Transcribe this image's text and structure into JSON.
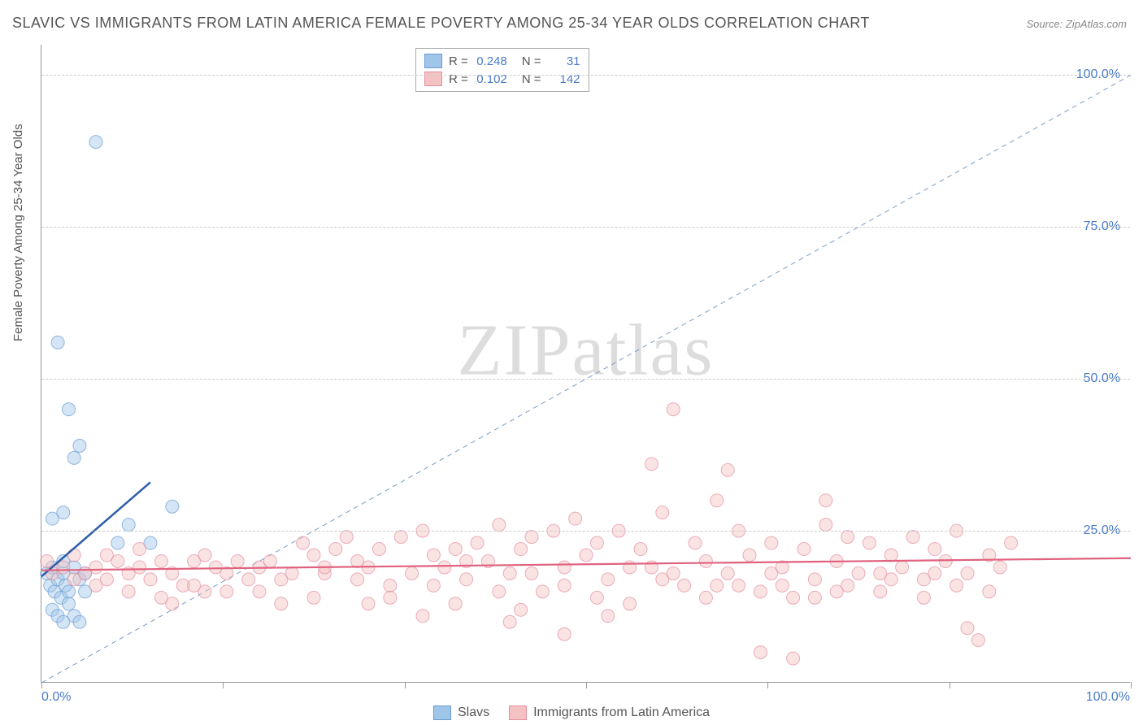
{
  "title": "SLAVIC VS IMMIGRANTS FROM LATIN AMERICA FEMALE POVERTY AMONG 25-34 YEAR OLDS CORRELATION CHART",
  "source": "Source: ZipAtlas.com",
  "watermark": "ZIPatlas",
  "chart": {
    "type": "scatter",
    "background_color": "#ffffff",
    "grid_color": "#cccccc",
    "axis_color": "#999999",
    "xlim": [
      0,
      100
    ],
    "ylim": [
      0,
      105
    ],
    "x_ticks": [
      0,
      16.67,
      33.33,
      50,
      66.67,
      83.33,
      100
    ],
    "x_tick_labels_shown": {
      "0": "0.0%",
      "100": "100.0%"
    },
    "y_grid_lines": [
      25,
      50,
      75,
      100
    ],
    "y_tick_labels": {
      "25": "25.0%",
      "50": "50.0%",
      "75": "75.0%",
      "100": "100.0%"
    },
    "ylabel": "Female Poverty Among 25-34 Year Olds",
    "label_fontsize": 15,
    "tick_label_color": "#4a7bc8",
    "tick_label_fontsize": 16,
    "marker_radius": 8,
    "marker_opacity": 0.45,
    "diagonal_line": {
      "color": "#7a9cc6",
      "dash": "6 5",
      "from": [
        0,
        0
      ],
      "to": [
        100,
        100
      ]
    },
    "series": [
      {
        "name": "Slavs",
        "color": "#9fc5e8",
        "stroke": "#6b9bd1",
        "R": "0.248",
        "N": "31",
        "trend": {
          "from": [
            0,
            17.5
          ],
          "to": [
            10,
            33
          ],
          "color": "#2e5da8",
          "width": 2.5
        },
        "points": [
          [
            0.5,
            18
          ],
          [
            0.8,
            16
          ],
          [
            1,
            19
          ],
          [
            1.2,
            15
          ],
          [
            1.5,
            17
          ],
          [
            1.8,
            14
          ],
          [
            2,
            18
          ],
          [
            2.2,
            16
          ],
          [
            2.5,
            15
          ],
          [
            2,
            20
          ],
          [
            3,
            19
          ],
          [
            3.5,
            17
          ],
          [
            4,
            15
          ],
          [
            1,
            12
          ],
          [
            1.5,
            11
          ],
          [
            2,
            10
          ],
          [
            2.5,
            13
          ],
          [
            3,
            11
          ],
          [
            3.5,
            10
          ],
          [
            1,
            27
          ],
          [
            2,
            28
          ],
          [
            3,
            37
          ],
          [
            3.5,
            39
          ],
          [
            2.5,
            45
          ],
          [
            8,
            26
          ],
          [
            12,
            29
          ],
          [
            7,
            23
          ],
          [
            10,
            23
          ],
          [
            1.5,
            56
          ],
          [
            5,
            89
          ],
          [
            4,
            18
          ]
        ]
      },
      {
        "name": "Immigrants from Latin America",
        "color": "#f4c2c2",
        "stroke": "#e38fa0",
        "R": "0.102",
        "N": "142",
        "trend": {
          "from": [
            0,
            18.5
          ],
          "to": [
            100,
            20.5
          ],
          "color": "#e0627f",
          "width": 2.2
        },
        "points": [
          [
            0.5,
            20
          ],
          [
            1,
            18
          ],
          [
            2,
            19
          ],
          [
            3,
            21
          ],
          [
            4,
            18
          ],
          [
            5,
            19
          ],
          [
            6,
            17
          ],
          [
            7,
            20
          ],
          [
            8,
            18
          ],
          [
            9,
            19
          ],
          [
            10,
            17
          ],
          [
            11,
            20
          ],
          [
            12,
            18
          ],
          [
            13,
            16
          ],
          [
            14,
            20
          ],
          [
            15,
            21
          ],
          [
            16,
            19
          ],
          [
            17,
            18
          ],
          [
            18,
            20
          ],
          [
            19,
            17
          ],
          [
            20,
            19
          ],
          [
            21,
            20
          ],
          [
            22,
            17
          ],
          [
            23,
            18
          ],
          [
            24,
            23
          ],
          [
            25,
            21
          ],
          [
            26,
            18
          ],
          [
            27,
            22
          ],
          [
            28,
            24
          ],
          [
            29,
            20
          ],
          [
            30,
            19
          ],
          [
            31,
            22
          ],
          [
            32,
            16
          ],
          [
            33,
            24
          ],
          [
            34,
            18
          ],
          [
            35,
            25
          ],
          [
            36,
            21
          ],
          [
            37,
            19
          ],
          [
            38,
            22
          ],
          [
            39,
            17
          ],
          [
            40,
            23
          ],
          [
            41,
            20
          ],
          [
            42,
            26
          ],
          [
            43,
            18
          ],
          [
            44,
            22
          ],
          [
            45,
            24
          ],
          [
            46,
            15
          ],
          [
            47,
            25
          ],
          [
            48,
            19
          ],
          [
            49,
            27
          ],
          [
            50,
            21
          ],
          [
            51,
            23
          ],
          [
            52,
            17
          ],
          [
            53,
            25
          ],
          [
            54,
            13
          ],
          [
            55,
            22
          ],
          [
            56,
            19
          ],
          [
            57,
            28
          ],
          [
            58,
            45
          ],
          [
            59,
            16
          ],
          [
            60,
            23
          ],
          [
            61,
            20
          ],
          [
            62,
            30
          ],
          [
            63,
            18
          ],
          [
            64,
            25
          ],
          [
            65,
            21
          ],
          [
            66,
            15
          ],
          [
            67,
            23
          ],
          [
            68,
            19
          ],
          [
            69,
            14
          ],
          [
            70,
            22
          ],
          [
            71,
            17
          ],
          [
            72,
            26
          ],
          [
            73,
            20
          ],
          [
            74,
            24
          ],
          [
            75,
            18
          ],
          [
            76,
            23
          ],
          [
            77,
            15
          ],
          [
            78,
            21
          ],
          [
            79,
            19
          ],
          [
            80,
            24
          ],
          [
            81,
            17
          ],
          [
            82,
            22
          ],
          [
            83,
            20
          ],
          [
            84,
            25
          ],
          [
            85,
            18
          ],
          [
            86,
            7
          ],
          [
            87,
            21
          ],
          [
            88,
            19
          ],
          [
            89,
            23
          ],
          [
            35,
            11
          ],
          [
            43,
            10
          ],
          [
            48,
            8
          ],
          [
            66,
            5
          ],
          [
            69,
            4
          ],
          [
            85,
            9
          ],
          [
            56,
            36
          ],
          [
            63,
            35
          ],
          [
            72,
            30
          ],
          [
            20,
            15
          ],
          [
            25,
            14
          ],
          [
            30,
            13
          ],
          [
            15,
            15
          ],
          [
            12,
            13
          ],
          [
            8,
            15
          ],
          [
            5,
            16
          ],
          [
            3,
            17
          ],
          [
            6,
            21
          ],
          [
            9,
            22
          ],
          [
            11,
            14
          ],
          [
            14,
            16
          ],
          [
            17,
            15
          ],
          [
            22,
            13
          ],
          [
            26,
            19
          ],
          [
            29,
            17
          ],
          [
            32,
            14
          ],
          [
            36,
            16
          ],
          [
            39,
            20
          ],
          [
            42,
            15
          ],
          [
            45,
            18
          ],
          [
            48,
            16
          ],
          [
            51,
            14
          ],
          [
            54,
            19
          ],
          [
            57,
            17
          ],
          [
            61,
            14
          ],
          [
            64,
            16
          ],
          [
            67,
            18
          ],
          [
            71,
            14
          ],
          [
            74,
            16
          ],
          [
            77,
            18
          ],
          [
            81,
            14
          ],
          [
            84,
            16
          ],
          [
            87,
            15
          ],
          [
            38,
            13
          ],
          [
            44,
            12
          ],
          [
            52,
            11
          ],
          [
            58,
            18
          ],
          [
            62,
            16
          ],
          [
            68,
            16
          ],
          [
            73,
            15
          ],
          [
            78,
            17
          ],
          [
            82,
            18
          ]
        ]
      }
    ]
  },
  "stats_labels": {
    "R": "R =",
    "N": "N ="
  },
  "legend": {
    "items": [
      {
        "label": "Slavs",
        "swatch": "#9fc5e8",
        "border": "#6b9bd1"
      },
      {
        "label": "Immigrants from Latin America",
        "swatch": "#f4c2c2",
        "border": "#e38fa0"
      }
    ]
  }
}
